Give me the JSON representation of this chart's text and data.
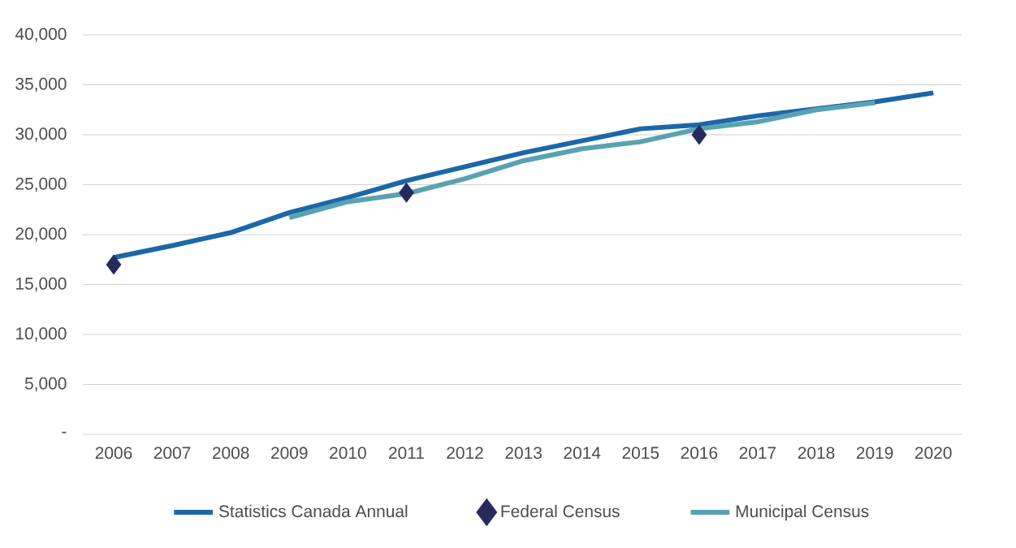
{
  "chart_data": {
    "type": "line",
    "categories": [
      "2006",
      "2007",
      "2008",
      "2009",
      "2010",
      "2011",
      "2012",
      "2013",
      "2014",
      "2015",
      "2016",
      "2017",
      "2018",
      "2019",
      "2020"
    ],
    "series": [
      {
        "name": "Statistics Canada Annual",
        "color": "#1c67a8",
        "marker": "none",
        "values": [
          17700,
          18900,
          20200,
          22200,
          23700,
          25400,
          26800,
          28200,
          29400,
          30600,
          31000,
          31900,
          32600,
          33300,
          34200
        ]
      },
      {
        "name": "Federal Census",
        "type": "scatter",
        "color": "#262a5c",
        "marker": "diamond",
        "values": [
          17000,
          null,
          null,
          null,
          null,
          24200,
          null,
          null,
          null,
          null,
          30000,
          null,
          null,
          null,
          null
        ]
      },
      {
        "name": "Municipal Census",
        "color": "#5aa2b2",
        "marker": "none",
        "values": [
          null,
          null,
          null,
          21700,
          23300,
          24100,
          25600,
          27400,
          28600,
          29300,
          30600,
          31300,
          32500,
          33200,
          null
        ]
      }
    ],
    "ylim": [
      0,
      40000
    ],
    "yticks": [
      {
        "value": 0,
        "label": "-"
      },
      {
        "value": 5000,
        "label": "5,000"
      },
      {
        "value": 10000,
        "label": "10,000"
      },
      {
        "value": 15000,
        "label": "15,000"
      },
      {
        "value": 20000,
        "label": "20,000"
      },
      {
        "value": 25000,
        "label": "25,000"
      },
      {
        "value": 30000,
        "label": "30,000"
      },
      {
        "value": 35000,
        "label": "35,000"
      },
      {
        "value": 40000,
        "label": "40,000"
      }
    ],
    "grid": "y",
    "legend": "bottom"
  }
}
